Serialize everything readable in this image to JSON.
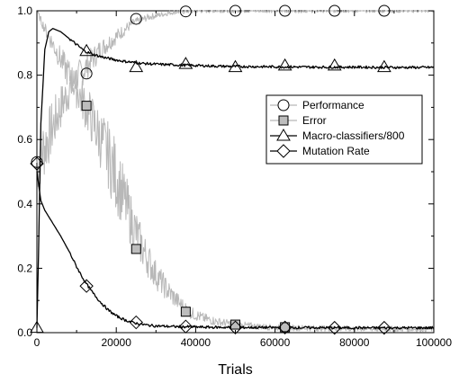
{
  "chart_data": {
    "type": "line",
    "xlabel": "Trials",
    "ylabel": "",
    "xlim": [
      0,
      100000
    ],
    "ylim": [
      0,
      1.0
    ],
    "x_ticks": [
      "0",
      "20000",
      "40000",
      "60000",
      "80000",
      "100000"
    ],
    "y_ticks": [
      "0.0",
      "0.2",
      "0.4",
      "0.6",
      "0.8",
      "1.0"
    ],
    "legend_position": "center-right",
    "series": [
      {
        "name": "Performance",
        "marker": "circle",
        "color": "#b8b8b8",
        "noisy": true,
        "x": [
          0,
          2000,
          4000,
          6000,
          8000,
          10000,
          12000,
          14000,
          16000,
          18000,
          20000,
          22000,
          24000,
          26000,
          28000,
          30000,
          32000,
          34000,
          36000,
          38000,
          40000,
          45000,
          50000,
          55000,
          60000,
          70000,
          80000,
          90000,
          100000
        ],
        "values": [
          0.53,
          0.58,
          0.64,
          0.7,
          0.75,
          0.79,
          0.82,
          0.85,
          0.88,
          0.9,
          0.92,
          0.94,
          0.96,
          0.97,
          0.98,
          0.985,
          0.99,
          0.995,
          0.997,
          0.998,
          0.999,
          1.0,
          1.0,
          1.0,
          1.0,
          1.0,
          1.0,
          1.0,
          1.0
        ],
        "markers_x": [
          0,
          12500,
          25000,
          37500,
          50000,
          62500,
          75000,
          87500
        ],
        "markers_y": [
          0.53,
          0.805,
          0.975,
          0.998,
          1.0,
          1.0,
          1.0,
          1.0
        ]
      },
      {
        "name": "Error",
        "marker": "square",
        "color": "#b8b8b8",
        "noisy": true,
        "x": [
          0,
          1000,
          3000,
          6000,
          9000,
          12000,
          15000,
          18000,
          21000,
          24000,
          27000,
          30000,
          33000,
          36000,
          39000,
          42000,
          45000,
          50000,
          55000,
          60000,
          70000,
          80000,
          100000
        ],
        "values": [
          1.0,
          0.97,
          0.92,
          0.85,
          0.78,
          0.71,
          0.63,
          0.55,
          0.45,
          0.34,
          0.25,
          0.18,
          0.13,
          0.09,
          0.06,
          0.045,
          0.035,
          0.025,
          0.02,
          0.016,
          0.014,
          0.012,
          0.011
        ],
        "markers_x": [
          12500,
          25000,
          37500,
          50000,
          62500
        ],
        "markers_y": [
          0.705,
          0.26,
          0.065,
          0.025,
          0.017
        ]
      },
      {
        "name": "Macro-classifiers/800",
        "marker": "triangle",
        "color": "#000000",
        "noisy": false,
        "x": [
          0,
          500,
          1000,
          2000,
          3000,
          4000,
          6000,
          8000,
          10000,
          12000,
          14000,
          16000,
          18000,
          20000,
          22000,
          24000,
          26000,
          30000,
          35000,
          40000,
          45000,
          50000,
          60000,
          70000,
          80000,
          90000,
          100000
        ],
        "values": [
          0.015,
          0.3,
          0.65,
          0.88,
          0.935,
          0.945,
          0.935,
          0.915,
          0.895,
          0.875,
          0.865,
          0.858,
          0.852,
          0.847,
          0.843,
          0.84,
          0.837,
          0.834,
          0.832,
          0.83,
          0.828,
          0.827,
          0.826,
          0.825,
          0.825,
          0.824,
          0.824
        ],
        "markers_x": [
          0,
          12500,
          25000,
          37500,
          50000,
          62500,
          75000,
          87500
        ],
        "markers_y": [
          0.015,
          0.875,
          0.825,
          0.835,
          0.825,
          0.83,
          0.83,
          0.825
        ]
      },
      {
        "name": "Mutation Rate",
        "marker": "diamond",
        "color": "#000000",
        "noisy": false,
        "x": [
          0,
          1000,
          2000,
          4000,
          6000,
          8000,
          10000,
          12000,
          14000,
          16000,
          18000,
          20000,
          22000,
          24000,
          26000,
          28000,
          30000,
          34000,
          38000,
          42000,
          50000,
          60000,
          80000,
          100000
        ],
        "values": [
          0.5,
          0.41,
          0.38,
          0.34,
          0.3,
          0.255,
          0.205,
          0.16,
          0.125,
          0.095,
          0.07,
          0.052,
          0.04,
          0.032,
          0.027,
          0.023,
          0.021,
          0.019,
          0.018,
          0.017,
          0.016,
          0.016,
          0.015,
          0.015
        ],
        "markers_x": [
          0,
          12500,
          25000,
          37500,
          50000,
          62500,
          75000,
          87500
        ],
        "markers_y": [
          0.525,
          0.145,
          0.032,
          0.019,
          0.016,
          0.016,
          0.015,
          0.015
        ]
      }
    ]
  }
}
